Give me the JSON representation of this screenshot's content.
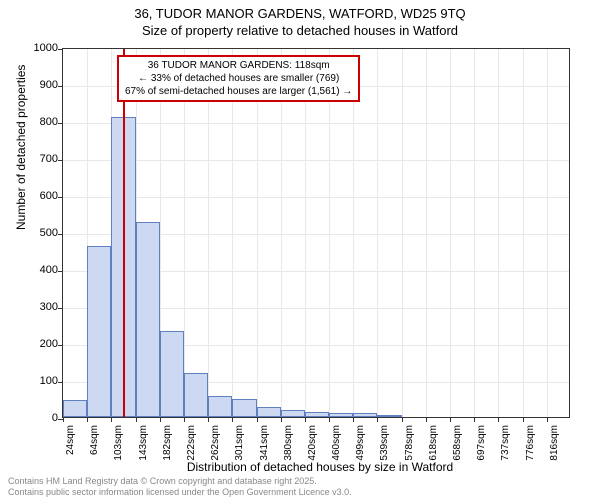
{
  "chart": {
    "type": "histogram",
    "title_line1": "36, TUDOR MANOR GARDENS, WATFORD, WD25 9TQ",
    "title_line2": "Size of property relative to detached houses in Watford",
    "y_axis_label": "Number of detached properties",
    "x_axis_label": "Distribution of detached houses by size in Watford",
    "ylim_max": 1000,
    "y_ticks": [
      0,
      100,
      200,
      300,
      400,
      500,
      600,
      700,
      800,
      900,
      1000
    ],
    "x_tick_labels": [
      "24sqm",
      "64sqm",
      "103sqm",
      "143sqm",
      "182sqm",
      "222sqm",
      "262sqm",
      "301sqm",
      "341sqm",
      "380sqm",
      "420sqm",
      "460sqm",
      "499sqm",
      "539sqm",
      "578sqm",
      "618sqm",
      "658sqm",
      "697sqm",
      "737sqm",
      "776sqm",
      "816sqm"
    ],
    "bars": [
      {
        "value": 45
      },
      {
        "value": 462
      },
      {
        "value": 812
      },
      {
        "value": 528
      },
      {
        "value": 233
      },
      {
        "value": 120
      },
      {
        "value": 58
      },
      {
        "value": 48
      },
      {
        "value": 28
      },
      {
        "value": 18
      },
      {
        "value": 14
      },
      {
        "value": 10
      },
      {
        "value": 12
      },
      {
        "value": 4
      },
      {
        "value": 0
      },
      {
        "value": 0
      },
      {
        "value": 0
      },
      {
        "value": 0
      },
      {
        "value": 0
      },
      {
        "value": 0
      },
      {
        "value": 0
      }
    ],
    "bar_fill_color": "#cdd9f2",
    "bar_border_color": "#6080c0",
    "reference_line_position_pct": 11.8,
    "reference_line_color": "#cc0000",
    "info_box": {
      "line1": "36 TUDOR MANOR GARDENS: 118sqm",
      "line2": "← 33% of detached houses are smaller (769)",
      "line3": "67% of semi-detached houses are larger (1,561) →"
    },
    "footer_line1": "Contains HM Land Registry data © Crown copyright and database right 2025.",
    "footer_line2": "Contains public sector information licensed under the Open Government Licence v3.0.",
    "background_color": "#ffffff",
    "grid_color": "#e8e8e8",
    "footer_color": "#888888"
  }
}
